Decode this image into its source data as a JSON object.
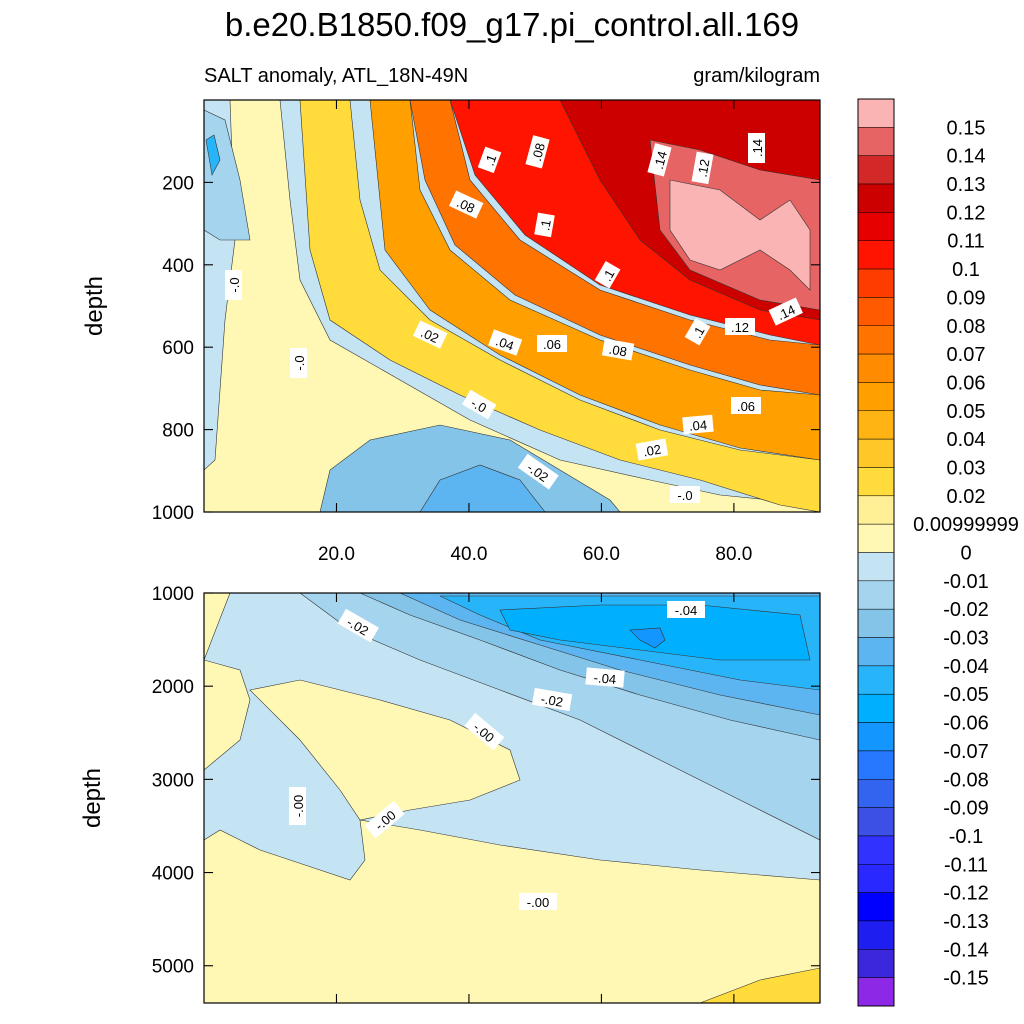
{
  "chart_data": {
    "type": "heatmap",
    "title": "b.e20.B1850.f09_g17.pi_control.all.169",
    "subtitle_left": "SALT anomaly, ATL_18N-49N",
    "subtitle_right": "gram/kilogram",
    "panels": [
      {
        "id": "upper",
        "ylabel": "depth",
        "ylim": [
          1000,
          0
        ],
        "yticks": [
          "200",
          "400",
          "600",
          "800",
          "1000"
        ],
        "xlim": [
          0,
          93
        ],
        "xticks": [
          "20.0",
          "40.0",
          "60.0",
          "80.0"
        ],
        "contour_labels": [
          ".1",
          ".08",
          ".14",
          ".12",
          ".14",
          ".08",
          ".1",
          ".1",
          "-.0",
          ".02",
          ".04",
          ".06",
          ".08",
          ".1",
          ".12",
          ".14",
          "-.0",
          "-.0",
          ".06",
          ".04",
          ".02",
          "-.02",
          "-.0"
        ],
        "field_summary": "Positive salinity anomaly increasing toward later time and shallow depth (max ~0.15 near 70-93 at 150-450 m); near-zero to slightly negative values deeper than 700 m and at early time."
      },
      {
        "id": "lower",
        "ylabel": "depth",
        "ylim": [
          5400,
          1000
        ],
        "yticks": [
          "1000",
          "2000",
          "3000",
          "4000",
          "5000"
        ],
        "xlim": [
          0,
          93
        ],
        "contour_labels": [
          "-.02",
          "-.04",
          "-.04",
          "-.02",
          "-.00",
          "-.00",
          "-.00",
          "-.00"
        ],
        "field_summary": "Negative anomaly (min ~-0.06) spreading at 1000-2000 m in later time; weakly positive/near-zero values in deep and early regions."
      }
    ],
    "colorbar": {
      "labels": [
        "0.15",
        "0.14",
        "0.13",
        "0.12",
        "0.11",
        "0.1",
        "0.09",
        "0.08",
        "0.07",
        "0.06",
        "0.05",
        "0.04",
        "0.03",
        "0.02",
        "0.00999999",
        "0",
        "-0.01",
        "-0.02",
        "-0.03",
        "-0.04",
        "-0.05",
        "-0.06",
        "-0.07",
        "-0.08",
        "-0.09",
        "-0.1",
        "-0.11",
        "-0.12",
        "-0.13",
        "-0.14",
        "-0.15"
      ],
      "colors": [
        "#fbb4b4",
        "#e66464",
        "#d22828",
        "#cd0000",
        "#e60000",
        "#ff1400",
        "#ff3c00",
        "#ff5a00",
        "#ff7300",
        "#ff8c00",
        "#ffa000",
        "#ffb414",
        "#ffc828",
        "#ffdc3c",
        "#fff096",
        "#fff8b4",
        "#c4e4f4",
        "#a4d4ee",
        "#84c4e8",
        "#5cb4f0",
        "#28b4f8",
        "#00b0ff",
        "#1496ff",
        "#2878ff",
        "#3264f0",
        "#3c50e6",
        "#3232ff",
        "#2828ff",
        "#0000ff",
        "#1e1ef0",
        "#3c28dc",
        "#8c28e6"
      ]
    }
  }
}
